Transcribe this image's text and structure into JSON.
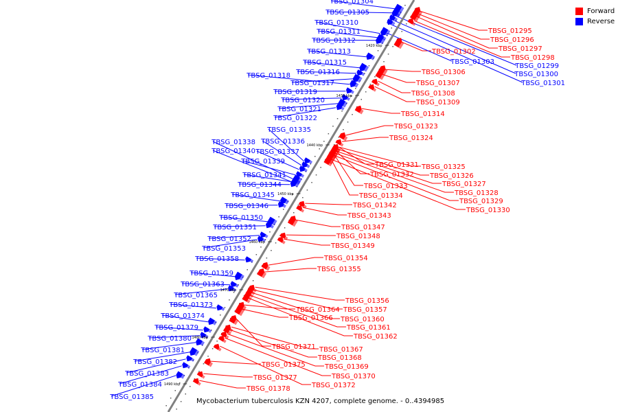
{
  "caption": "Mycobacterium tuberculosis KZN 4207, complete genome. - 0..4394985",
  "legend": [
    {
      "label": "Forward",
      "color": "#ff0000"
    },
    {
      "label": "Reverse",
      "color": "#0000ff"
    }
  ],
  "colors": {
    "forward": "#ff0000",
    "reverse": "#0000ff",
    "backbone": "#808080"
  },
  "ticks": [
    "1420 kbp",
    "1430 kbp",
    "1440 kbp",
    "1450 kbp",
    "1460 kbp",
    "1470 kbp",
    "1480 kbp",
    "1490 kbp"
  ],
  "forward_genes": [
    "TBSG_01295",
    "TBSG_01296",
    "TBSG_01297",
    "TBSG_01298",
    "TBSG_01302",
    "TBSG_01306",
    "TBSG_01307",
    "TBSG_01308",
    "TBSG_01309",
    "TBSG_01314",
    "TBSG_01323",
    "TBSG_01324",
    "TBSG_01325",
    "TBSG_01326",
    "TBSG_01327",
    "TBSG_01328",
    "TBSG_01329",
    "TBSG_01330",
    "TBSG_01331",
    "TBSG_01332",
    "TBSG_01333",
    "TBSG_01334",
    "TBSG_01342",
    "TBSG_01343",
    "TBSG_01347",
    "TBSG_01348",
    "TBSG_01349",
    "TBSG_01354",
    "TBSG_01355",
    "TBSG_01356",
    "TBSG_01357",
    "TBSG_01360",
    "TBSG_01361",
    "TBSG_01362",
    "TBSG_01364",
    "TBSG_01366",
    "TBSG_01367",
    "TBSG_01368",
    "TBSG_01369",
    "TBSG_01370",
    "TBSG_01371",
    "TBSG_01372",
    "TBSG_01375",
    "TBSG_01377",
    "TBSG_01378"
  ],
  "reverse_genes": [
    "TBSG_01299",
    "TBSG_01300",
    "TBSG_01301",
    "TBSG_01303",
    "TBSG_01304",
    "TBSG_01305",
    "TBSG_01310",
    "TBSG_01311",
    "TBSG_01312",
    "TBSG_01313",
    "TBSG_01315",
    "TBSG_01316",
    "TBSG_01317",
    "TBSG_01318",
    "TBSG_01319",
    "TBSG_01320",
    "TBSG_01321",
    "TBSG_01322",
    "TBSG_01335",
    "TBSG_01336",
    "TBSG_01337",
    "TBSG_01338",
    "TBSG_01339",
    "TBSG_01340",
    "TBSG_01341",
    "TBSG_01344",
    "TBSG_01345",
    "TBSG_01346",
    "TBSG_01350",
    "TBSG_01351",
    "TBSG_01352",
    "TBSG_01353",
    "TBSG_01358",
    "TBSG_01359",
    "TBSG_01363",
    "TBSG_01365",
    "TBSG_01373",
    "TBSG_01374",
    "TBSG_01379",
    "TBSG_01380",
    "TBSG_01381",
    "TBSG_01382",
    "TBSG_01383",
    "TBSG_01384",
    "TBSG_01385"
  ]
}
